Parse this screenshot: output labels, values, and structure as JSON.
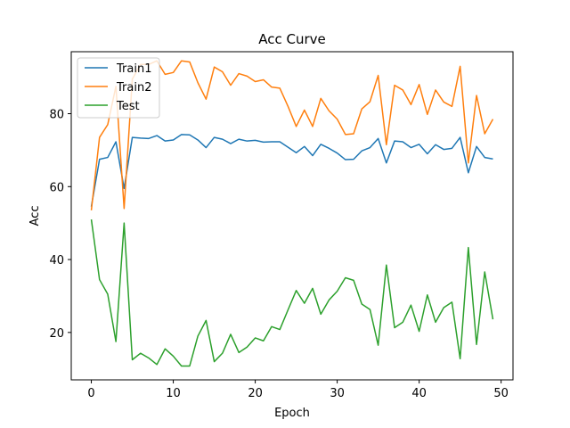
{
  "chart_data": {
    "type": "line",
    "title": "Acc Curve",
    "xlabel": "Epoch",
    "ylabel": "Acc",
    "xlim": [
      -2.45,
      51.45
    ],
    "ylim": [
      7.0,
      97.0
    ],
    "xticks": [
      0,
      10,
      20,
      30,
      40,
      50
    ],
    "yticks": [
      20,
      40,
      60,
      80
    ],
    "grid": false,
    "legend_position": "top-left",
    "x": [
      0,
      1,
      2,
      3,
      4,
      5,
      6,
      7,
      8,
      9,
      10,
      11,
      12,
      13,
      14,
      15,
      16,
      17,
      18,
      19,
      20,
      21,
      22,
      23,
      24,
      25,
      26,
      27,
      28,
      29,
      30,
      31,
      32,
      33,
      34,
      35,
      36,
      37,
      38,
      39,
      40,
      41,
      42,
      43,
      44,
      45,
      46,
      47,
      48,
      49
    ],
    "series": [
      {
        "name": "Train1",
        "color": "#1f77b4",
        "values": [
          54.5,
          67.5,
          68.0,
          72.3,
          59.5,
          73.5,
          73.3,
          73.2,
          74.0,
          72.5,
          72.8,
          74.3,
          74.2,
          72.8,
          70.7,
          73.5,
          73.0,
          71.8,
          73.0,
          72.5,
          72.7,
          72.2,
          72.3,
          72.3,
          70.8,
          69.3,
          71.0,
          68.5,
          71.6,
          70.5,
          69.2,
          67.4,
          67.5,
          69.8,
          70.7,
          73.2,
          66.5,
          72.5,
          72.3,
          70.7,
          71.6,
          69.0,
          71.5,
          70.2,
          70.5,
          73.5,
          63.8,
          71.0,
          68.0,
          67.6
        ]
      },
      {
        "name": "Train2",
        "color": "#ff7f0e",
        "values": [
          53.5,
          73.5,
          77.0,
          87.5,
          54.0,
          89.5,
          93.5,
          93.5,
          94.5,
          90.8,
          91.3,
          94.5,
          94.2,
          88.5,
          84.0,
          92.8,
          91.5,
          87.8,
          91.0,
          90.3,
          88.8,
          89.3,
          87.3,
          87.0,
          82.0,
          76.5,
          81.0,
          76.5,
          84.2,
          80.8,
          78.5,
          74.3,
          74.5,
          81.3,
          83.3,
          90.5,
          71.5,
          87.8,
          86.5,
          82.5,
          88.0,
          79.8,
          86.5,
          83.2,
          82.0,
          93.0,
          66.5,
          85.0,
          74.5,
          78.5
        ]
      },
      {
        "name": "Test",
        "color": "#2ca02c",
        "values": [
          51.0,
          34.5,
          30.5,
          17.5,
          50.0,
          12.5,
          14.3,
          13.0,
          11.2,
          15.5,
          13.5,
          10.8,
          10.8,
          19.0,
          23.3,
          12.0,
          14.3,
          19.5,
          14.5,
          16.0,
          18.5,
          17.7,
          21.6,
          20.8,
          26.2,
          31.5,
          28.0,
          32.1,
          25.0,
          28.9,
          31.3,
          35.0,
          34.3,
          27.8,
          26.3,
          16.5,
          38.5,
          21.3,
          22.8,
          27.5,
          20.3,
          30.3,
          22.8,
          26.8,
          28.3,
          12.8,
          43.3,
          16.7,
          36.6,
          23.6
        ]
      }
    ]
  }
}
